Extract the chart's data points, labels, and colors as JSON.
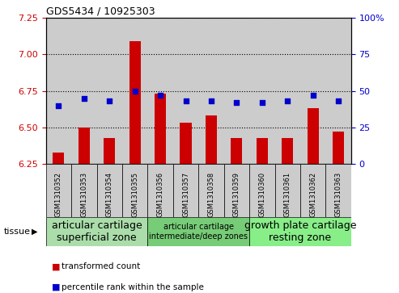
{
  "title": "GDS5434 / 10925303",
  "samples": [
    "GSM1310352",
    "GSM1310353",
    "GSM1310354",
    "GSM1310355",
    "GSM1310356",
    "GSM1310357",
    "GSM1310358",
    "GSM1310359",
    "GSM1310360",
    "GSM1310361",
    "GSM1310362",
    "GSM1310363"
  ],
  "bar_values": [
    6.33,
    6.5,
    6.43,
    7.09,
    6.73,
    6.53,
    6.58,
    6.43,
    6.43,
    6.43,
    6.63,
    6.47
  ],
  "dot_values_pct": [
    40,
    45,
    43,
    50,
    47,
    43,
    43,
    42,
    42,
    43,
    47,
    43
  ],
  "ylim_left": [
    6.25,
    7.25
  ],
  "ylim_right": [
    0,
    100
  ],
  "yticks_left": [
    6.25,
    6.5,
    6.75,
    7.0,
    7.25
  ],
  "yticks_right": [
    0,
    25,
    50,
    75,
    100
  ],
  "bar_color": "#cc0000",
  "dot_color": "#0000cc",
  "bar_baseline": 6.25,
  "tissue_groups": [
    {
      "label": "articular cartilage\nsuperficial zone",
      "start": 0,
      "end": 4,
      "color": "#aaddaa",
      "fontsize": 9
    },
    {
      "label": "articular cartilage\nintermediate/deep zones",
      "start": 4,
      "end": 8,
      "color": "#77cc77",
      "fontsize": 7
    },
    {
      "label": "growth plate cartilage\nresting zone",
      "start": 8,
      "end": 12,
      "color": "#88ee88",
      "fontsize": 9
    }
  ],
  "legend_bar_label": "transformed count",
  "legend_dot_label": "percentile rank within the sample",
  "tissue_label": "tissue",
  "col_bg_color": "#cccccc",
  "grid_color": "black",
  "fig_width": 4.93,
  "fig_height": 3.63
}
